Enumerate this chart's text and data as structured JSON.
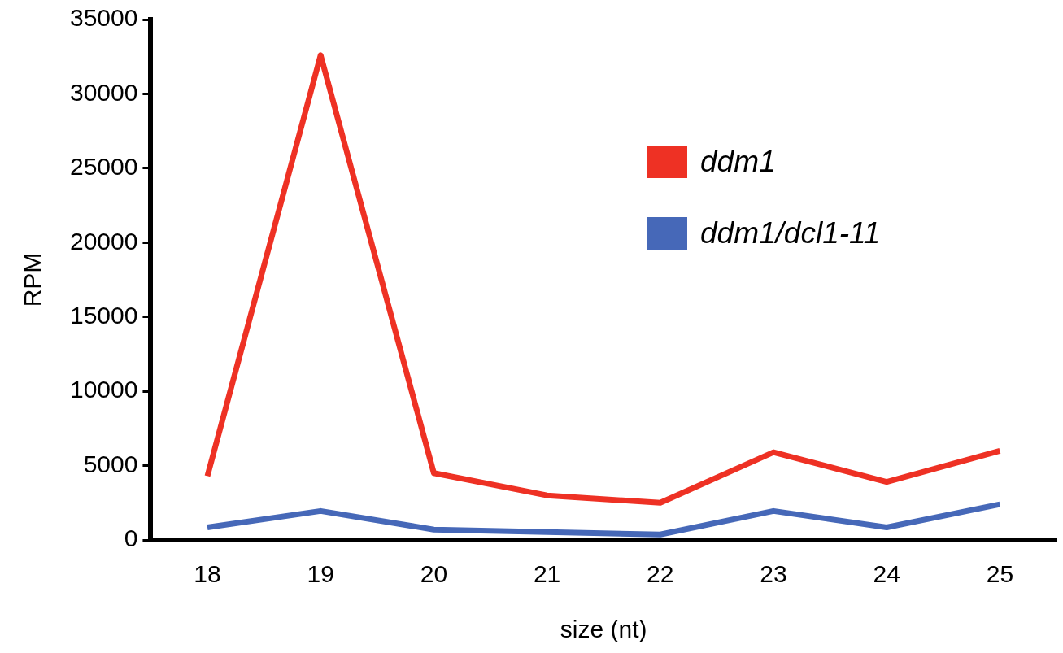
{
  "chart_data": {
    "type": "line",
    "xlabel": "size (nt)",
    "ylabel": "RPM",
    "categories": [
      "18",
      "19",
      "20",
      "21",
      "22",
      "23",
      "24",
      "25"
    ],
    "series": [
      {
        "name": "ddm1",
        "color": "#ee3124",
        "values": [
          4300,
          32600,
          4500,
          3000,
          2500,
          5900,
          3900,
          6000
        ]
      },
      {
        "name": "ddm1/dcl1-11",
        "color": "#4668b8",
        "values": [
          850,
          1950,
          700,
          530,
          370,
          1950,
          850,
          2400
        ]
      }
    ],
    "ylim": [
      0,
      35000
    ],
    "yticks": [
      0,
      5000,
      10000,
      15000,
      20000,
      25000,
      30000,
      35000
    ],
    "grid": false,
    "legend": "top right",
    "marker": "none",
    "line_style": "solid"
  }
}
